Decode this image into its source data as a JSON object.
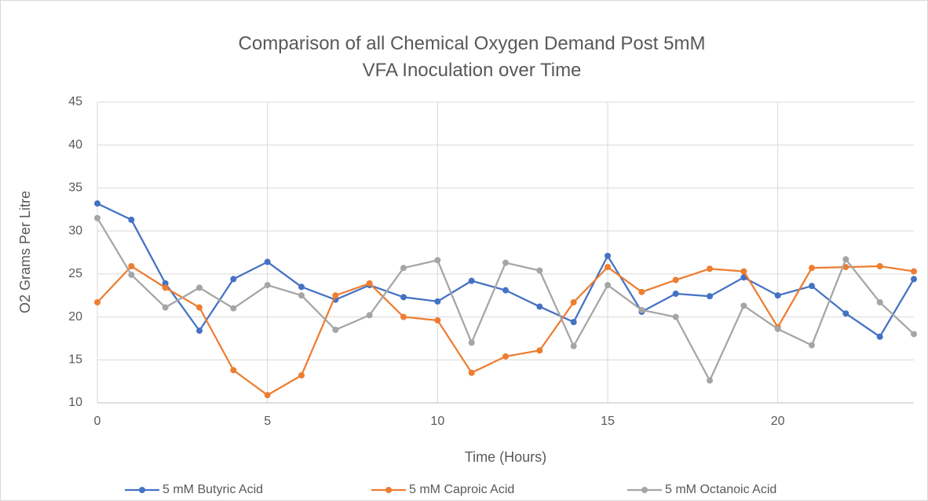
{
  "chart_data": {
    "type": "line",
    "title": "Comparison of all Chemical Oxygen Demand Post 5mM VFA Inoculation over Time",
    "xlabel": "Time (Hours)",
    "ylabel": "O2 Grams Per Litre",
    "x": [
      0,
      1,
      2,
      3,
      4,
      5,
      6,
      7,
      8,
      9,
      10,
      11,
      12,
      13,
      14,
      15,
      16,
      17,
      18,
      19,
      20,
      21,
      22,
      23,
      24
    ],
    "series": [
      {
        "name": "5 mM Butyric Acid",
        "color": "#4472c4",
        "values": [
          33.2,
          31.3,
          23.9,
          18.4,
          24.4,
          26.4,
          23.5,
          22.0,
          23.7,
          22.3,
          21.8,
          24.2,
          23.1,
          21.2,
          19.4,
          27.1,
          20.6,
          22.7,
          22.4,
          24.6,
          22.5,
          23.6,
          20.4,
          17.7,
          24.4
        ]
      },
      {
        "name": "5 mM Caproic Acid",
        "color": "#ed7d31",
        "values": [
          21.7,
          25.9,
          23.4,
          21.1,
          13.8,
          10.9,
          13.2,
          22.5,
          23.9,
          20.0,
          19.6,
          13.5,
          15.4,
          16.1,
          21.7,
          25.8,
          22.9,
          24.3,
          25.6,
          25.3,
          18.8,
          25.7,
          25.8,
          25.9,
          25.3
        ]
      },
      {
        "name": "5 mM Octanoic Acid",
        "color": "#a5a5a5",
        "values": [
          31.5,
          24.9,
          21.1,
          23.4,
          21.0,
          23.7,
          22.5,
          18.5,
          20.2,
          25.7,
          26.6,
          17.0,
          26.3,
          25.4,
          16.6,
          23.7,
          20.8,
          20.0,
          12.6,
          21.3,
          18.6,
          16.7,
          26.7,
          21.7,
          18.0
        ]
      }
    ],
    "xlim": [
      0,
      24
    ],
    "xticks": [
      0,
      5,
      10,
      15,
      20
    ],
    "ylim": [
      10,
      45
    ],
    "yticks": [
      10,
      15,
      20,
      25,
      30,
      35,
      40,
      45
    ],
    "grid": true,
    "legend": "bottom"
  }
}
